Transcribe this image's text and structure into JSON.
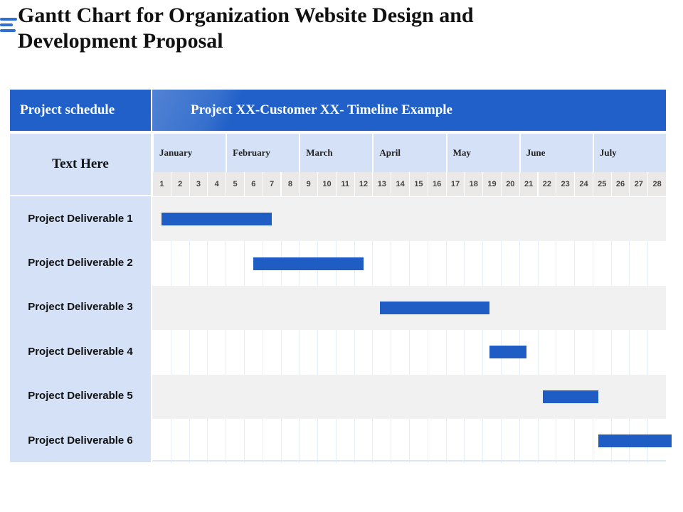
{
  "title": "Gantt Chart for Organization Website Design and Development Proposal",
  "header": {
    "project_schedule": "Project schedule",
    "timeline_title": "Project XX-Customer XX- Timeline Example",
    "text_here": "Text Here"
  },
  "colors": {
    "accent": "#2060c8",
    "bar": "#1f5cc4",
    "label_bg": "#d4e1f7",
    "week_bg": "#ebe8e8",
    "row_shade": "#f1f1f1"
  },
  "chart_data": {
    "type": "gantt",
    "title": "Project XX-Customer XX- Timeline Example",
    "months": [
      "January",
      "February",
      "March",
      "April",
      "May",
      "June",
      "July"
    ],
    "weeks_per_month": 4,
    "weeks": [
      "1",
      "2",
      "3",
      "4",
      "5",
      "6",
      "7",
      "8",
      "9",
      "10",
      "11",
      "12",
      "13",
      "14",
      "15",
      "16",
      "17",
      "18",
      "19",
      "20",
      "21",
      "22",
      "23",
      "24",
      "25",
      "26",
      "27",
      "28"
    ],
    "tasks": [
      {
        "name": "Project Deliverable 1",
        "start": 0.5,
        "end": 6.5
      },
      {
        "name": "Project Deliverable 2",
        "start": 5.5,
        "end": 11.5
      },
      {
        "name": "Project Deliverable 3",
        "start": 12.4,
        "end": 18.4
      },
      {
        "name": "Project Deliverable 4",
        "start": 18.4,
        "end": 20.4
      },
      {
        "name": "Project Deliverable 5",
        "start": 21.3,
        "end": 24.3
      },
      {
        "name": "Project Deliverable 6",
        "start": 24.3,
        "end": 28.3
      }
    ]
  }
}
